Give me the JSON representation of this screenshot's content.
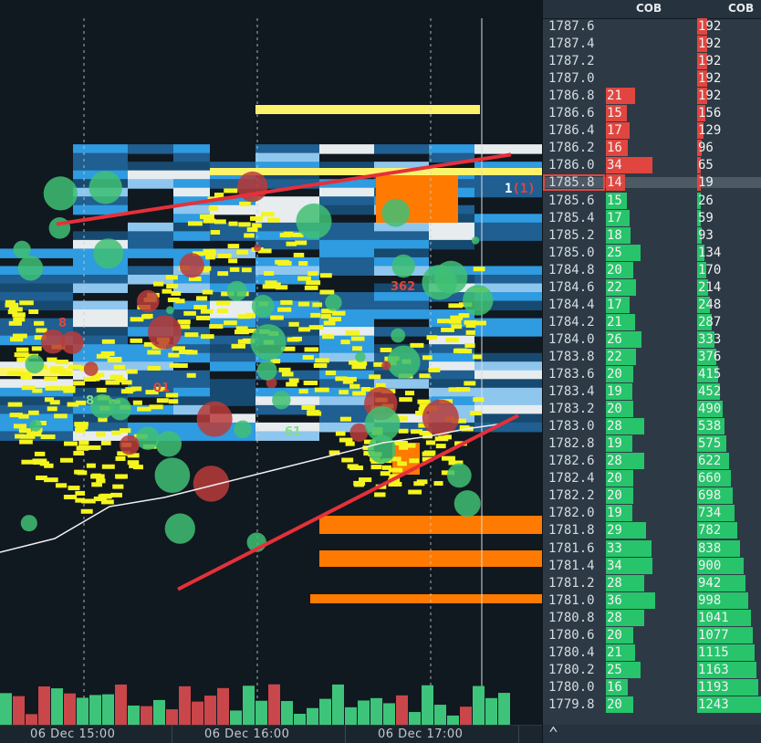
{
  "chart_data": {
    "type": "heatmap",
    "description": "",
    "title": "",
    "x_labels": [
      "06 Dec 15:00",
      "06 Dec 16:00",
      "06 Dec 17:00"
    ],
    "price_min": 1779.8,
    "price_max": 1787.6,
    "price_step": 0.2,
    "current_price": 1785.8,
    "last_trade": {
      "size": "1",
      "aggregated": "(1)"
    },
    "bubble_labels": [
      {
        "text": "362",
        "color": "#e0463f"
      },
      {
        "text": "01",
        "color": "#e0463f"
      },
      {
        "text": "61",
        "color": "#7fe08a"
      },
      {
        "text": "8",
        "color": "#e0463f"
      },
      {
        "text": "8",
        "color": "#7fe08a"
      }
    ],
    "annotations": {
      "upper_trendline": {
        "from_price": 1785.4,
        "to_price": 1786.2,
        "color": "#e5303a"
      },
      "lower_trendline": {
        "from_price": 1781.2,
        "to_price": 1783.2,
        "color": "#e5303a"
      }
    },
    "dom_headers": [
      "COB",
      "COB"
    ],
    "dom_levels": [
      {
        "price": "1787.6",
        "side": "ask",
        "size": "",
        "cob": "192"
      },
      {
        "price": "1787.4",
        "side": "ask",
        "size": "",
        "cob": "192"
      },
      {
        "price": "1787.2",
        "side": "ask",
        "size": "",
        "cob": "192"
      },
      {
        "price": "1787.0",
        "side": "ask",
        "size": "",
        "cob": "192"
      },
      {
        "price": "1786.8",
        "side": "ask",
        "size": "21",
        "cob": "192"
      },
      {
        "price": "1786.6",
        "side": "ask",
        "size": "15",
        "cob": "156"
      },
      {
        "price": "1786.4",
        "side": "ask",
        "size": "17",
        "cob": "129"
      },
      {
        "price": "1786.2",
        "side": "ask",
        "size": "16",
        "cob": "96"
      },
      {
        "price": "1786.0",
        "side": "ask",
        "size": "34",
        "cob": "65"
      },
      {
        "price": "1785.8",
        "side": "ask",
        "size": "14",
        "cob": "19"
      },
      {
        "price": "1785.6",
        "side": "bid",
        "size": "15",
        "cob": "26"
      },
      {
        "price": "1785.4",
        "side": "bid",
        "size": "17",
        "cob": "59"
      },
      {
        "price": "1785.2",
        "side": "bid",
        "size": "18",
        "cob": "93"
      },
      {
        "price": "1785.0",
        "side": "bid",
        "size": "25",
        "cob": "134"
      },
      {
        "price": "1784.8",
        "side": "bid",
        "size": "20",
        "cob": "170"
      },
      {
        "price": "1784.6",
        "side": "bid",
        "size": "22",
        "cob": "214"
      },
      {
        "price": "1784.4",
        "side": "bid",
        "size": "17",
        "cob": "248"
      },
      {
        "price": "1784.2",
        "side": "bid",
        "size": "21",
        "cob": "287"
      },
      {
        "price": "1784.0",
        "side": "bid",
        "size": "26",
        "cob": "333"
      },
      {
        "price": "1783.8",
        "side": "bid",
        "size": "22",
        "cob": "376"
      },
      {
        "price": "1783.6",
        "side": "bid",
        "size": "20",
        "cob": "415"
      },
      {
        "price": "1783.4",
        "side": "bid",
        "size": "19",
        "cob": "452"
      },
      {
        "price": "1783.2",
        "side": "bid",
        "size": "20",
        "cob": "490"
      },
      {
        "price": "1783.0",
        "side": "bid",
        "size": "28",
        "cob": "538"
      },
      {
        "price": "1782.8",
        "side": "bid",
        "size": "19",
        "cob": "575"
      },
      {
        "price": "1782.6",
        "side": "bid",
        "size": "28",
        "cob": "622"
      },
      {
        "price": "1782.4",
        "side": "bid",
        "size": "20",
        "cob": "660"
      },
      {
        "price": "1782.2",
        "side": "bid",
        "size": "20",
        "cob": "698"
      },
      {
        "price": "1782.0",
        "side": "bid",
        "size": "19",
        "cob": "734"
      },
      {
        "price": "1781.8",
        "side": "bid",
        "size": "29",
        "cob": "782"
      },
      {
        "price": "1781.6",
        "side": "bid",
        "size": "33",
        "cob": "838"
      },
      {
        "price": "1781.4",
        "side": "bid",
        "size": "34",
        "cob": "900"
      },
      {
        "price": "1781.2",
        "side": "bid",
        "size": "28",
        "cob": "942"
      },
      {
        "price": "1781.0",
        "side": "bid",
        "size": "36",
        "cob": "998"
      },
      {
        "price": "1780.8",
        "side": "bid",
        "size": "28",
        "cob": "1041"
      },
      {
        "price": "1780.6",
        "side": "bid",
        "size": "20",
        "cob": "1077"
      },
      {
        "price": "1780.4",
        "side": "bid",
        "size": "21",
        "cob": "1115"
      },
      {
        "price": "1780.2",
        "side": "bid",
        "size": "25",
        "cob": "1163"
      },
      {
        "price": "1780.0",
        "side": "bid",
        "size": "16",
        "cob": "1193"
      },
      {
        "price": "1779.8",
        "side": "bid",
        "size": "20",
        "cob": "1243"
      }
    ],
    "vwap_color": "#f0f0f0",
    "volume_colors": {
      "buy": "#3ec47a",
      "sell": "#c9464a"
    }
  },
  "colors": {
    "ask": "#e0463f",
    "bid": "#27c46b",
    "liquidity_low": "#1f5f91",
    "liquidity_mid": "#2f9be0",
    "liquidity_high": "#fdf36a",
    "liquidity_peak": "#ff7a00",
    "dot": "#f5f51e"
  },
  "icons": {
    "scroll": "chevron-up-icon"
  }
}
